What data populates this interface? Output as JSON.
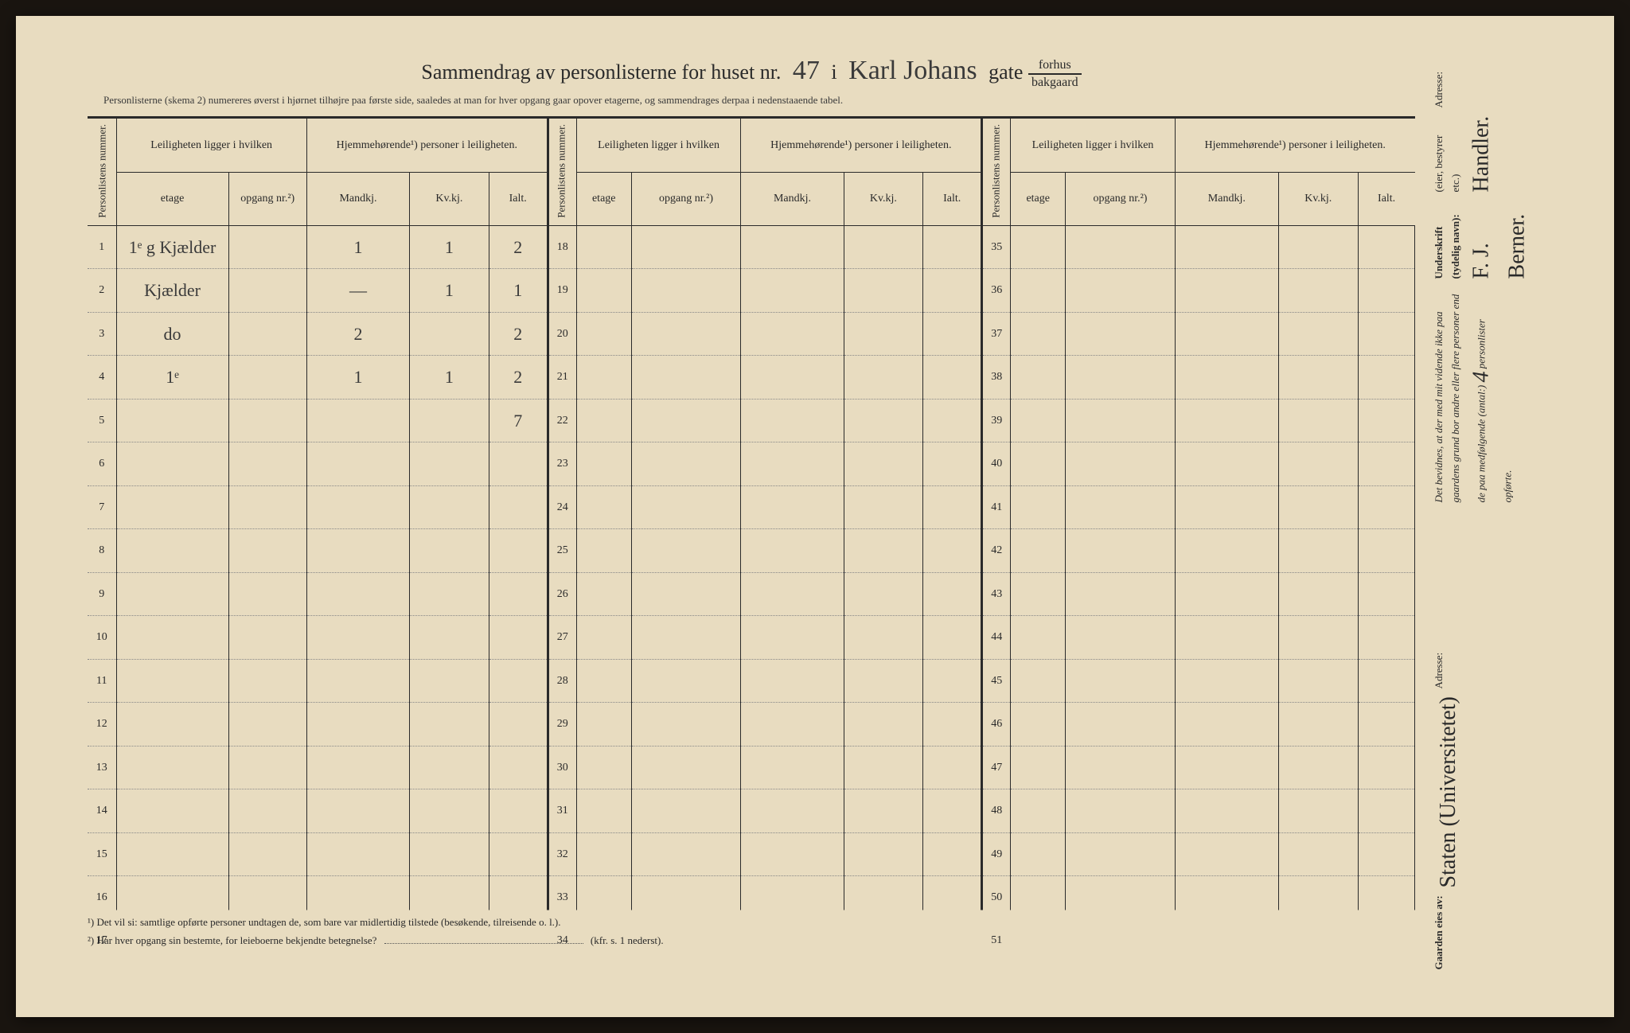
{
  "title": {
    "prefix": "Sammendrag av personlisterne for huset nr.",
    "house_number": "47",
    "mid": "i",
    "street_name": "Karl Johans",
    "suffix": "gate",
    "fraction_top": "forhus",
    "fraction_bottom": "bakgaard"
  },
  "subtitle": "Personlisterne (skema 2) numereres øverst i hjørnet tilhøjre paa første side, saaledes at man for hver opgang gaar opover etagerne, og sammendrages derpaa i nedenstaaende tabel.",
  "headers": {
    "personlistens_nummer": "Personlistens nummer.",
    "leiligheten": "Leiligheten ligger i hvilken",
    "hjemmehorende": "Hjemmehørende¹) personer i leiligheten.",
    "etage": "etage",
    "opgang": "opgang nr.²)",
    "mandkj": "Mandkj.",
    "kvkj": "Kv.kj.",
    "ialt": "Ialt."
  },
  "table": {
    "row_numbers_block1": [
      "1",
      "2",
      "3",
      "4",
      "5",
      "6",
      "7",
      "8",
      "9",
      "10",
      "11",
      "12",
      "13",
      "14",
      "15",
      "16",
      "17"
    ],
    "row_numbers_block2": [
      "18",
      "19",
      "20",
      "21",
      "22",
      "23",
      "24",
      "25",
      "26",
      "27",
      "28",
      "29",
      "30",
      "31",
      "32",
      "33",
      "34"
    ],
    "row_numbers_block3": [
      "35",
      "36",
      "37",
      "38",
      "39",
      "40",
      "41",
      "42",
      "43",
      "44",
      "45",
      "46",
      "47",
      "48",
      "49",
      "50",
      "51"
    ],
    "rows_block1": [
      {
        "etage": "1ᵉ g Kjælder",
        "opgang": "",
        "mandkj": "1",
        "kvkj": "1",
        "ialt": "2"
      },
      {
        "etage": "Kjælder",
        "opgang": "",
        "mandkj": "—",
        "kvkj": "1",
        "ialt": "1"
      },
      {
        "etage": "do",
        "opgang": "",
        "mandkj": "2",
        "kvkj": "",
        "ialt": "2"
      },
      {
        "etage": "1ᵉ",
        "opgang": "",
        "mandkj": "1",
        "kvkj": "1",
        "ialt": "2"
      },
      {
        "etage": "",
        "opgang": "",
        "mandkj": "",
        "kvkj": "",
        "ialt": "7"
      },
      {
        "etage": "",
        "opgang": "",
        "mandkj": "",
        "kvkj": "",
        "ialt": ""
      },
      {
        "etage": "",
        "opgang": "",
        "mandkj": "",
        "kvkj": "",
        "ialt": ""
      },
      {
        "etage": "",
        "opgang": "",
        "mandkj": "",
        "kvkj": "",
        "ialt": ""
      },
      {
        "etage": "",
        "opgang": "",
        "mandkj": "",
        "kvkj": "",
        "ialt": ""
      },
      {
        "etage": "",
        "opgang": "",
        "mandkj": "",
        "kvkj": "",
        "ialt": ""
      },
      {
        "etage": "",
        "opgang": "",
        "mandkj": "",
        "kvkj": "",
        "ialt": ""
      },
      {
        "etage": "",
        "opgang": "",
        "mandkj": "",
        "kvkj": "",
        "ialt": ""
      },
      {
        "etage": "",
        "opgang": "",
        "mandkj": "",
        "kvkj": "",
        "ialt": ""
      },
      {
        "etage": "",
        "opgang": "",
        "mandkj": "",
        "kvkj": "",
        "ialt": ""
      },
      {
        "etage": "",
        "opgang": "",
        "mandkj": "",
        "kvkj": "",
        "ialt": ""
      },
      {
        "etage": "",
        "opgang": "",
        "mandkj": "",
        "kvkj": "",
        "ialt": ""
      },
      {
        "etage": "",
        "opgang": "",
        "mandkj": "",
        "kvkj": "",
        "ialt": ""
      }
    ]
  },
  "footnotes": {
    "note1": "¹) Det vil si: samtlige opførte personer undtagen de, som bare var midlertidig tilstede (besøkende, tilreisende o. l.).",
    "note2_prefix": "²) Har hver opgang sin bestemte, for leieboerne bekjendte betegnelse?",
    "note2_suffix": "(kfr. s. 1 nederst)."
  },
  "sidebar": {
    "top": {
      "attest": "Det bevidnes, at der med mit vidende ikke paa gaardens grund bor andre eller flere personer end de paa medfølgende (antal:)",
      "count": "4",
      "suffix": "personlister opførte.",
      "underskrift_label": "Underskrift (tydelig navn):",
      "signature": "F. J. Berner.",
      "role": "(eier, bestyrer etc.)",
      "role_hw": "Handler.",
      "adresse_label": "Adresse:"
    },
    "bottom": {
      "owner_label": "Gaarden eies av:",
      "owner_name": "Staten (Universitetet)",
      "adresse_label": "Adresse:"
    }
  },
  "colors": {
    "paper": "#e8dcc0",
    "ink": "#2a2a2a",
    "handwriting": "#3a3a3a",
    "background": "#1a1510"
  }
}
